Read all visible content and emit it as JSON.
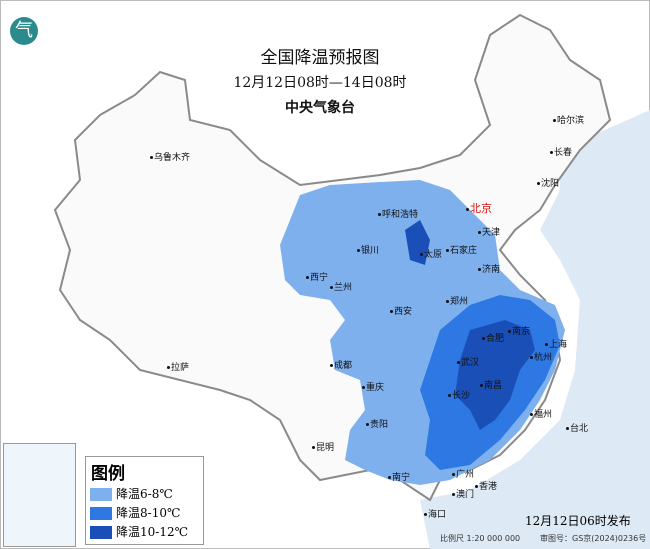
{
  "title": "全国降温预报图",
  "period": "12月12日08时—14日08时",
  "issuer": "中央气象台",
  "logo_text": "气",
  "cities": {
    "beijing": "北京",
    "urumqi": "乌鲁木齐",
    "harbin": "哈尔滨",
    "changchun": "长春",
    "shenyang": "沈阳",
    "tianjin": "天津",
    "hohhot": "呼和浩特",
    "shijiazhuang": "石家庄",
    "taiyuan": "太原",
    "jinan": "济南",
    "yinchuan": "银川",
    "xining": "西宁",
    "lanzhou": "兰州",
    "zhengzhou": "郑州",
    "xian": "西安",
    "hefei": "合肥",
    "nanjing": "南京",
    "shanghai": "上海",
    "hangzhou": "杭州",
    "wuhan": "武汉",
    "chengdu": "成都",
    "chongqing": "重庆",
    "changsha": "长沙",
    "nanchang": "南昌",
    "fuzhou": "福州",
    "taipei": "台北",
    "guiyang": "贵阳",
    "kunming": "昆明",
    "lhasa": "拉萨",
    "nanning": "南宁",
    "guangzhou": "广州",
    "hongkong": "香港",
    "macau": "澳门",
    "haikou": "海口"
  },
  "legend": {
    "title": "图例",
    "items": [
      {
        "label": "降温6-8℃",
        "color": "#7fb0ee"
      },
      {
        "label": "降温8-10℃",
        "color": "#2e78e4"
      },
      {
        "label": "降温10-12℃",
        "color": "#1a4fb8"
      }
    ]
  },
  "issued": "12月12日06时发布",
  "scale": "比例尺 1:20 000 000",
  "approval": "审图号：GS京(2024)0236号"
}
